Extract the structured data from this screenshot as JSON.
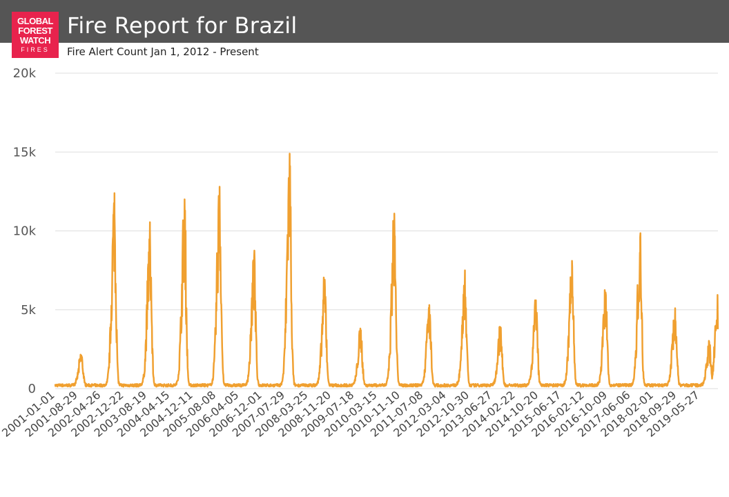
{
  "header": {
    "logo_lines": [
      "GLOBAL",
      "FOREST",
      "WATCH",
      "FIRES"
    ],
    "title": "Fire Report for Brazil",
    "subtitle": "Fire Alert Count Jan 1, 2012 - Present"
  },
  "colors": {
    "header_bg": "#555555",
    "logo_bg": "#e8234d",
    "series": "#f0a030",
    "grid": "#dddddd"
  },
  "chart_data": {
    "type": "line",
    "ylim": [
      0,
      20000
    ],
    "yticks": [
      0,
      5000,
      10000,
      15000,
      20000
    ],
    "ytick_labels": [
      "0",
      "5k",
      "10k",
      "15k",
      "20k"
    ],
    "x_date_range": [
      "2001-01-01",
      "2019-11-30"
    ],
    "xtick_labels": [
      "2001-01-01",
      "2001-08-29",
      "2002-04-26",
      "2002-12-22",
      "2003-08-19",
      "2004-04-15",
      "2004-12-11",
      "2005-08-08",
      "2006-04-05",
      "2006-12-01",
      "2007-07-29",
      "2008-03-25",
      "2008-11-20",
      "2009-07-18",
      "2010-03-15",
      "2010-11-10",
      "2011-07-08",
      "2012-03-04",
      "2012-10-30",
      "2013-06-27",
      "2014-02-22",
      "2014-10-20",
      "2015-06-17",
      "2016-02-12",
      "2016-10-09",
      "2017-06-06",
      "2018-02-01",
      "2018-09-29",
      "2019-05-27"
    ],
    "grid": true,
    "peaks": [
      {
        "date": "2001-10-01",
        "value": 2100
      },
      {
        "date": "2002-09-10",
        "value": 12400
      },
      {
        "date": "2003-09-15",
        "value": 10100
      },
      {
        "date": "2004-09-10",
        "value": 12000
      },
      {
        "date": "2005-09-10",
        "value": 12800
      },
      {
        "date": "2006-09-05",
        "value": 8300
      },
      {
        "date": "2007-09-10",
        "value": 14900
      },
      {
        "date": "2008-09-10",
        "value": 6900
      },
      {
        "date": "2009-09-20",
        "value": 3700
      },
      {
        "date": "2010-09-05",
        "value": 11100
      },
      {
        "date": "2011-09-05",
        "value": 5300
      },
      {
        "date": "2012-09-10",
        "value": 7500
      },
      {
        "date": "2013-09-15",
        "value": 3900
      },
      {
        "date": "2014-09-20",
        "value": 5600
      },
      {
        "date": "2015-10-01",
        "value": 8100
      },
      {
        "date": "2016-09-15",
        "value": 6100
      },
      {
        "date": "2017-09-10",
        "value": 9600
      },
      {
        "date": "2018-09-10",
        "value": 5100
      },
      {
        "date": "2019-09-01",
        "value": 2700
      },
      {
        "date": "2019-11-25",
        "value": 5500
      }
    ]
  }
}
